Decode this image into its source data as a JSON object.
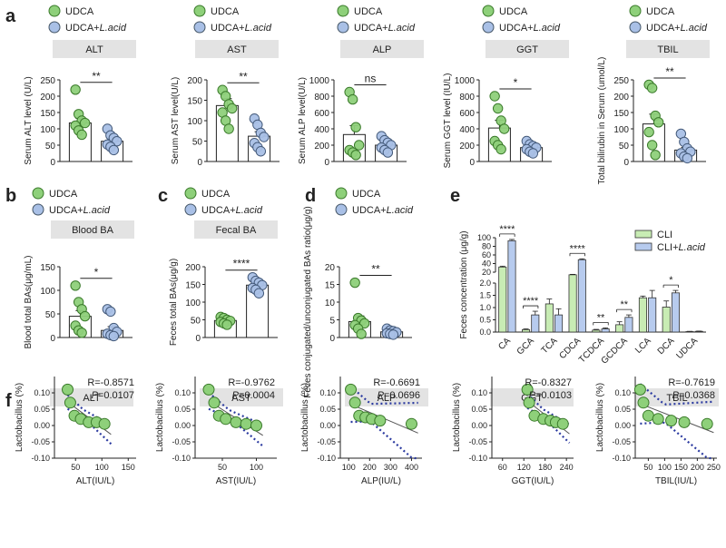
{
  "colors": {
    "udca": "#8ed07a",
    "lacid": "#a9c0e6",
    "cli": "#c8ecb4",
    "cli_lacid": "#b7cbee",
    "header_bg": "#e3e3e3",
    "trend": "#2b3aa0"
  },
  "panel_letters": {
    "a": "a",
    "b": "b",
    "c": "c",
    "d": "d",
    "e": "e",
    "f": "f"
  },
  "legend": {
    "udca": "UDCA",
    "lacid_prefix": "UDCA+",
    "lacid_italic": "L.acid",
    "cli": "CLI",
    "cli_lacid_prefix": "CLI+",
    "cli_lacid_italic": "L.acid"
  },
  "chart_data": [
    {
      "id": "a1",
      "type": "bar",
      "title": "ALT",
      "ylabel": "Serum ALT level (U/L)",
      "yticks": [
        "0",
        "50",
        "100",
        "150",
        "200",
        "250"
      ],
      "ylim": [
        0,
        250
      ],
      "categories": [
        "UDCA",
        "UDCA+L.acid"
      ],
      "values": [
        118,
        62
      ],
      "errors": [
        14,
        9
      ],
      "points": [
        [
          220,
          145,
          125,
          118,
          110,
          95,
          82
        ],
        [
          100,
          80,
          72,
          62,
          52,
          45,
          35
        ]
      ],
      "sig": "**"
    },
    {
      "id": "a2",
      "type": "bar",
      "title": "AST",
      "ylabel": "Serum AST level(U/L)",
      "yticks": [
        "0",
        "50",
        "100",
        "150",
        "200"
      ],
      "ylim": [
        0,
        200
      ],
      "categories": [
        "UDCA",
        "UDCA+L.acid"
      ],
      "values": [
        137,
        62
      ],
      "errors": [
        17,
        11
      ],
      "points": [
        [
          175,
          160,
          140,
          130,
          120,
          100,
          80
        ],
        [
          105,
          90,
          70,
          60,
          45,
          35,
          25
        ]
      ],
      "sig": "**"
    },
    {
      "id": "a3",
      "type": "bar",
      "title": "ALP",
      "ylabel": "Serum ALP level(U/L)",
      "yticks": [
        "0",
        "200",
        "400",
        "600",
        "800",
        "1000"
      ],
      "ylim": [
        0,
        1000
      ],
      "categories": [
        "UDCA",
        "UDCA+L.acid"
      ],
      "values": [
        330,
        200
      ],
      "errors": [
        110,
        35
      ],
      "points": [
        [
          850,
          760,
          420,
          200,
          140,
          110,
          80
        ],
        [
          310,
          260,
          230,
          200,
          170,
          140,
          110
        ]
      ],
      "sig": "ns"
    },
    {
      "id": "a4",
      "type": "bar",
      "title": "GGT",
      "ylabel": "Serum GGT level  (IU/L)",
      "yticks": [
        "0",
        "200",
        "400",
        "600",
        "800",
        "1000"
      ],
      "ylim": [
        0,
        1000
      ],
      "categories": [
        "UDCA",
        "UDCA+L.acid"
      ],
      "values": [
        410,
        170
      ],
      "errors": [
        95,
        25
      ],
      "points": [
        [
          800,
          650,
          500,
          400,
          250,
          200,
          150
        ],
        [
          250,
          210,
          190,
          170,
          150,
          120,
          100
        ]
      ],
      "sig": "*"
    },
    {
      "id": "a5",
      "type": "bar",
      "title": "TBIL",
      "ylabel": "Total bilirubin in Serum (umol/L)",
      "yticks": [
        "0",
        "50",
        "100",
        "150",
        "200",
        "250"
      ],
      "ylim": [
        0,
        250
      ],
      "categories": [
        "UDCA",
        "UDCA+L.acid"
      ],
      "values": [
        115,
        35
      ],
      "errors": [
        30,
        8
      ],
      "points": [
        [
          235,
          225,
          140,
          120,
          90,
          50,
          20
        ],
        [
          85,
          60,
          40,
          30,
          25,
          15,
          10
        ]
      ],
      "sig": "**"
    },
    {
      "id": "b",
      "type": "bar",
      "title": "Blood BA",
      "ylabel": "Blood total BAs(μg/mL)",
      "yticks": [
        "0",
        "50",
        "100",
        "150"
      ],
      "ylim": [
        0,
        150
      ],
      "categories": [
        "UDCA",
        "UDCA+L.acid"
      ],
      "values": [
        45,
        15
      ],
      "errors": [
        12,
        8
      ],
      "points": [
        [
          110,
          75,
          60,
          45,
          25,
          15,
          10
        ],
        [
          60,
          55,
          20,
          12,
          8,
          5,
          3
        ]
      ],
      "sig": "*"
    },
    {
      "id": "c",
      "type": "bar",
      "title": "Fecal BA",
      "ylabel": "Feces total BAs(μg/g)",
      "yticks": [
        "0",
        "50",
        "100",
        "150",
        "200"
      ],
      "ylim": [
        0,
        200
      ],
      "categories": [
        "UDCA",
        "UDCA+L.acid"
      ],
      "values": [
        48,
        148
      ],
      "errors": [
        4,
        6
      ],
      "points": [
        [
          58,
          55,
          50,
          47,
          44,
          40,
          36
        ],
        [
          170,
          160,
          155,
          148,
          140,
          135,
          125
        ]
      ],
      "sig": "****"
    },
    {
      "id": "d",
      "type": "bar",
      "title": "",
      "ylabel": "Feces conjugated/unconjugated BAs ratio(μg/g)",
      "yticks": [
        "0",
        "5",
        "10",
        "15",
        "20"
      ],
      "ylim": [
        0,
        20
      ],
      "categories": [
        "UDCA",
        "UDCA+L.acid"
      ],
      "values": [
        4.5,
        1.6
      ],
      "errors": [
        1.6,
        0.3
      ],
      "points": [
        [
          15.5,
          5.5,
          4.8,
          4,
          3.5,
          2.5,
          1
        ],
        [
          2.5,
          2,
          1.8,
          1.5,
          1.2,
          1,
          0.8
        ]
      ],
      "sig": "**"
    },
    {
      "id": "e",
      "type": "bar",
      "title": "",
      "ylabel": "Feces concentration (μg/g)",
      "yticks_top": [
        "20",
        "40",
        "60",
        "80",
        "100"
      ],
      "yticks_bottom": [
        "0.0",
        "0.5",
        "1.0",
        "1.5",
        "2.0"
      ],
      "categories": [
        "CA",
        "GCA",
        "TCA",
        "CDCA",
        "TCDCA",
        "GCDCA",
        "LCA",
        "DCA",
        "UDCA"
      ],
      "series": [
        {
          "name": "CLI",
          "values": [
            32,
            0.1,
            1.15,
            14,
            0.08,
            0.3,
            1.4,
            1.02,
            0.02
          ],
          "errors": [
            2,
            0.03,
            0.2,
            1,
            0.03,
            0.12,
            0.07,
            0.25,
            0.01
          ]
        },
        {
          "name": "CLI+L.acid",
          "values": [
            93,
            0.7,
            0.7,
            49,
            0.13,
            0.6,
            1.4,
            1.6,
            0.03
          ],
          "errors": [
            3,
            0.15,
            0.25,
            2,
            0.04,
            0.1,
            0.3,
            0.1,
            0.01
          ]
        }
      ],
      "sig": [
        {
          "i": 0,
          "t": "****"
        },
        {
          "i": 1,
          "t": "****"
        },
        {
          "i": 3,
          "t": "****"
        },
        {
          "i": 4,
          "t": "**"
        },
        {
          "i": 5,
          "t": "**"
        },
        {
          "i": 7,
          "t": "*"
        }
      ]
    },
    {
      "id": "f1",
      "type": "scatter",
      "title": "ALT",
      "xlabel": "ALT(IU/L)",
      "ylabel": "Lactobacillus (%)",
      "xticks": [
        "50",
        "100",
        "150"
      ],
      "xlim": [
        10,
        165
      ],
      "yticks": [
        "-0.10",
        "-0.05",
        "0.00",
        "0.05",
        "0.10"
      ],
      "ylim": [
        -0.1,
        0.15
      ],
      "r": "R=-0.8571",
      "p": "0.0107",
      "points": [
        [
          35,
          0.11
        ],
        [
          40,
          0.07
        ],
        [
          48,
          0.03
        ],
        [
          60,
          0.02
        ],
        [
          75,
          0.01
        ],
        [
          90,
          0.01
        ],
        [
          105,
          0.005
        ]
      ],
      "ci": "narrow"
    },
    {
      "id": "f2",
      "type": "scatter",
      "title": "AST",
      "xlabel": "AST(IU/L)",
      "ylabel": "Lactobacillus (%)",
      "xticks": [
        "50",
        "100"
      ],
      "xlim": [
        10,
        130
      ],
      "yticks": [
        "-0.10",
        "-0.05",
        "0.00",
        "0.05",
        "0.10"
      ],
      "ylim": [
        -0.1,
        0.15
      ],
      "r": "R=-0.9762",
      "p": "0.0004",
      "points": [
        [
          30,
          0.11
        ],
        [
          38,
          0.07
        ],
        [
          45,
          0.03
        ],
        [
          55,
          0.02
        ],
        [
          70,
          0.01
        ],
        [
          85,
          0.005
        ],
        [
          100,
          0.0
        ]
      ],
      "ci": "narrow"
    },
    {
      "id": "f3",
      "type": "scatter",
      "title": "ALP",
      "xlabel": "ALP(IU/L)",
      "ylabel": "Lactobacillus (%)",
      "xticks": [
        "100",
        "200",
        "300",
        "400"
      ],
      "xlim": [
        60,
        450
      ],
      "yticks": [
        "-0.10",
        "-0.05",
        "0.00",
        "0.05",
        "0.10"
      ],
      "ylim": [
        -0.1,
        0.15
      ],
      "r": "R=-0.6691",
      "p": "0.0696",
      "points": [
        [
          110,
          0.11
        ],
        [
          130,
          0.07
        ],
        [
          150,
          0.03
        ],
        [
          180,
          0.025
        ],
        [
          210,
          0.02
        ],
        [
          250,
          0.015
        ],
        [
          400,
          0.005
        ]
      ],
      "ci": "wide"
    },
    {
      "id": "f4",
      "type": "scatter",
      "title": "GGT",
      "xlabel": "GGT(IU/L)",
      "ylabel": "Lactobacillus (%)",
      "xticks": [
        "60",
        "120",
        "180",
        "240"
      ],
      "xlim": [
        30,
        260
      ],
      "yticks": [
        "-0.10",
        "-0.05",
        "0.00",
        "0.05",
        "0.10"
      ],
      "ylim": [
        -0.1,
        0.15
      ],
      "r": "R=-0.8327",
      "p": "0.0103",
      "points": [
        [
          130,
          0.11
        ],
        [
          135,
          0.07
        ],
        [
          150,
          0.03
        ],
        [
          175,
          0.02
        ],
        [
          195,
          0.015
        ],
        [
          210,
          0.01
        ],
        [
          230,
          0.005
        ]
      ],
      "ci": "narrow"
    },
    {
      "id": "f5",
      "type": "scatter",
      "title": "TBIL",
      "xlabel": "TBIL(IU/L)",
      "ylabel": "Lactobacillus (%)",
      "xticks": [
        "50",
        "100",
        "150",
        "200",
        "250"
      ],
      "xlim": [
        10,
        260
      ],
      "yticks": [
        "-0.10",
        "-0.05",
        "0.00",
        "0.05",
        "0.10"
      ],
      "ylim": [
        -0.1,
        0.15
      ],
      "r": "R=-0.7619",
      "p": "0.0368",
      "points": [
        [
          25,
          0.11
        ],
        [
          35,
          0.07
        ],
        [
          50,
          0.03
        ],
        [
          80,
          0.02
        ],
        [
          120,
          0.015
        ],
        [
          160,
          0.01
        ],
        [
          230,
          0.005
        ]
      ],
      "ci": "wide"
    }
  ]
}
